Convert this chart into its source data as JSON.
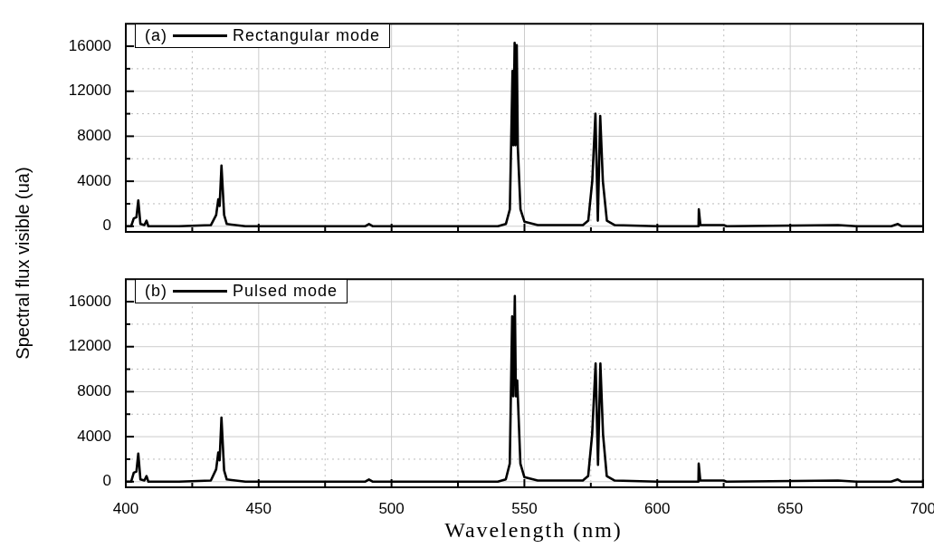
{
  "chart_data": [
    {
      "type": "line",
      "ylabel": "Spectral flux visible (ua)",
      "legend_title": "(a)",
      "legend": "top left",
      "grid": true,
      "marker": "none",
      "line_style": "solid",
      "tick_labels": "y",
      "xlim": [
        400,
        700
      ],
      "ylim": [
        -500,
        18000
      ],
      "xticks": [
        400,
        {
          "value": 425,
          "label": null
        },
        450,
        {
          "value": 475,
          "label": null
        },
        500,
        {
          "value": 525,
          "label": null
        },
        550,
        {
          "value": 575,
          "label": null
        },
        600,
        {
          "value": 625,
          "label": null
        },
        650,
        {
          "value": 675,
          "label": null
        },
        700
      ],
      "yticks": [
        0,
        {
          "value": 2000,
          "label": null
        },
        4000,
        {
          "value": 6000,
          "label": null
        },
        8000,
        {
          "value": 10000,
          "label": null
        },
        12000,
        {
          "value": 14000,
          "label": null
        },
        16000
      ],
      "series": [
        {
          "name": "Rectangular mode",
          "color": "#000000",
          "x": [
            400,
            402,
            403,
            404,
            404.7,
            405.5,
            407,
            407.8,
            408.5,
            420,
            432,
            434,
            434.8,
            435.3,
            436,
            437,
            438,
            445,
            490,
            491.5,
            493,
            540,
            543,
            544.5,
            545.5,
            545.8,
            546.3,
            546.6,
            547.1,
            547.5,
            548.5,
            550,
            555,
            572,
            574,
            575.5,
            576.7,
            577.6,
            578.5,
            579.5,
            581,
            584,
            600,
            615.5,
            615.6,
            616.2,
            625,
            626,
            668,
            675,
            688,
            690.5,
            692,
            700
          ],
          "values": [
            0,
            0,
            700,
            800,
            2300,
            200,
            100,
            500,
            0,
            0,
            100,
            1000,
            2400,
            1800,
            5400,
            1000,
            200,
            0,
            0,
            200,
            0,
            0,
            200,
            1500,
            13800,
            7200,
            16300,
            7200,
            16100,
            7000,
            1500,
            400,
            100,
            100,
            500,
            4000,
            10000,
            500,
            9800,
            4000,
            500,
            100,
            0,
            0,
            1500,
            100,
            100,
            0,
            100,
            0,
            0,
            200,
            0,
            0
          ]
        }
      ]
    },
    {
      "type": "line",
      "xlabel": "Wavelength (nm)",
      "legend_title": "(b)",
      "legend": "top left",
      "grid": true,
      "marker": "none",
      "line_style": "solid",
      "xlim": [
        400,
        700
      ],
      "ylim": [
        -500,
        18000
      ],
      "xticks": [
        400,
        {
          "value": 425,
          "label": null
        },
        450,
        {
          "value": 475,
          "label": null
        },
        500,
        {
          "value": 525,
          "label": null
        },
        550,
        {
          "value": 575,
          "label": null
        },
        600,
        {
          "value": 625,
          "label": null
        },
        650,
        {
          "value": 675,
          "label": null
        },
        700
      ],
      "yticks": [
        0,
        {
          "value": 2000,
          "label": null
        },
        4000,
        {
          "value": 6000,
          "label": null
        },
        8000,
        {
          "value": 10000,
          "label": null
        },
        12000,
        {
          "value": 14000,
          "label": null
        },
        16000
      ],
      "series": [
        {
          "name": "Pulsed mode",
          "color": "#000000",
          "x": [
            400,
            402,
            403,
            404,
            404.7,
            405.5,
            407,
            407.8,
            408.5,
            420,
            432,
            434,
            434.8,
            435.3,
            436,
            437,
            438,
            445,
            490,
            491.5,
            493,
            540,
            543,
            544.5,
            545.4,
            545.8,
            546.4,
            546.8,
            547.3,
            548.5,
            550,
            555,
            572,
            574,
            575.5,
            576.8,
            577.7,
            578.6,
            579.6,
            581,
            584,
            600,
            615.5,
            615.6,
            616.2,
            625,
            626,
            668,
            675,
            688,
            690.5,
            692,
            700
          ],
          "values": [
            0,
            0,
            800,
            900,
            2500,
            200,
            100,
            500,
            0,
            0,
            100,
            1100,
            2600,
            1900,
            5700,
            1000,
            200,
            0,
            0,
            200,
            0,
            0,
            200,
            1600,
            14700,
            7600,
            16500,
            7600,
            9000,
            1600,
            400,
            100,
            100,
            500,
            4200,
            10500,
            1500,
            10500,
            4200,
            500,
            100,
            0,
            0,
            1600,
            100,
            100,
            0,
            100,
            0,
            0,
            200,
            0,
            0
          ]
        }
      ]
    }
  ]
}
